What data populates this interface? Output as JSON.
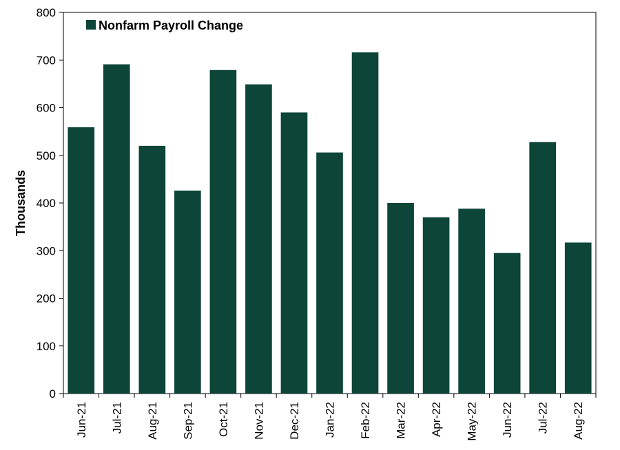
{
  "chart_data": {
    "type": "bar",
    "categories": [
      "Jun-21",
      "Jul-21",
      "Aug-21",
      "Sep-21",
      "Oct-21",
      "Nov-21",
      "Dec-21",
      "Jan-22",
      "Feb-22",
      "Mar-22",
      "Apr-22",
      "May-22",
      "Jun-22",
      "Jul-22",
      "Aug-22"
    ],
    "series": [
      {
        "name": "Nonfarm Payroll Change",
        "values": [
          559,
          691,
          520,
          426,
          679,
          649,
          590,
          506,
          716,
          400,
          370,
          388,
          295,
          528,
          317
        ],
        "color": "#0d4539"
      }
    ],
    "title": "",
    "xlabel": "",
    "ylabel": "Thousands",
    "ylim": [
      0,
      800
    ],
    "yticks": [
      0,
      100,
      200,
      300,
      400,
      500,
      600,
      700,
      800
    ],
    "grid": false,
    "legend": "top-left"
  }
}
